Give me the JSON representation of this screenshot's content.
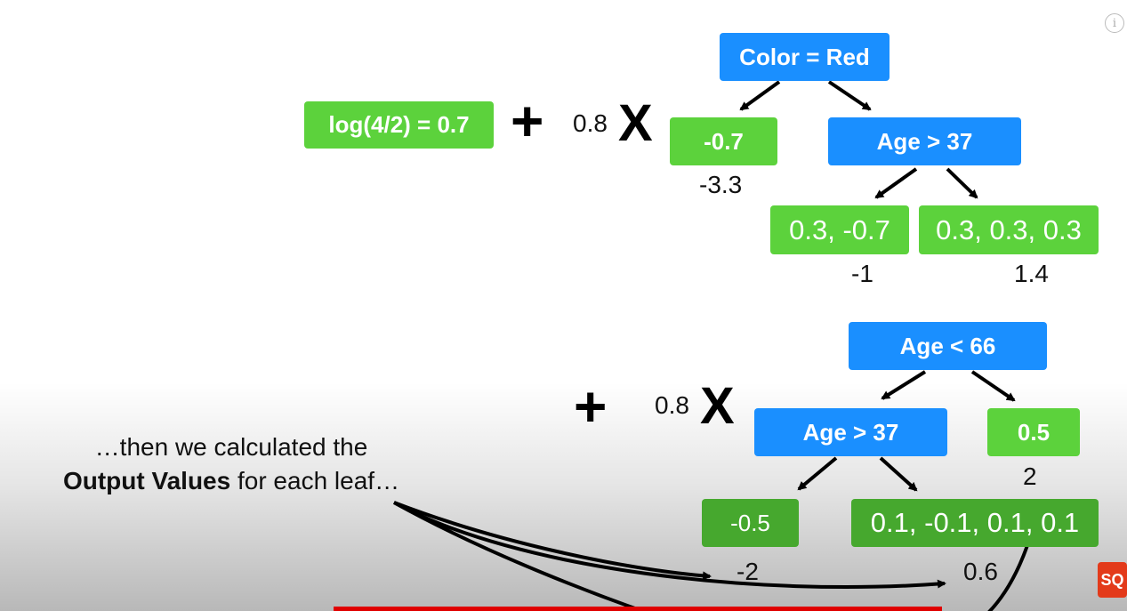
{
  "tree1": {
    "initial": "log(4/2) = 0.7",
    "plus": "+",
    "rate": "0.8",
    "times": "X",
    "root": "Color = Red",
    "left_leaf": "-0.7",
    "left_output": "-3.3",
    "node": "Age > 37",
    "leaf_a": "0.3, -0.7",
    "leaf_a_output": "-1",
    "leaf_b": "0.3, 0.3, 0.3",
    "leaf_b_output": "1.4"
  },
  "tree2": {
    "plus": "+",
    "rate": "0.8",
    "times": "X",
    "root": "Age < 66",
    "node": "Age > 37",
    "right_leaf": "0.5",
    "right_output": "2",
    "leaf_a": "-0.5",
    "leaf_a_output": "-2",
    "leaf_b": "0.1, -0.1, 0.1, 0.1",
    "leaf_b_output": "0.6"
  },
  "caption": {
    "line1": "…then we calculated the",
    "bold": "Output Values",
    "line2_rest": " for each leaf…"
  },
  "player": {
    "info_icon": "info-icon",
    "progress_fraction": 0.54,
    "channel_logo": "SQ"
  },
  "colors": {
    "leaf_green": "#5cd23c",
    "node_blue": "#1a8fff",
    "progress_red": "#e00000"
  }
}
